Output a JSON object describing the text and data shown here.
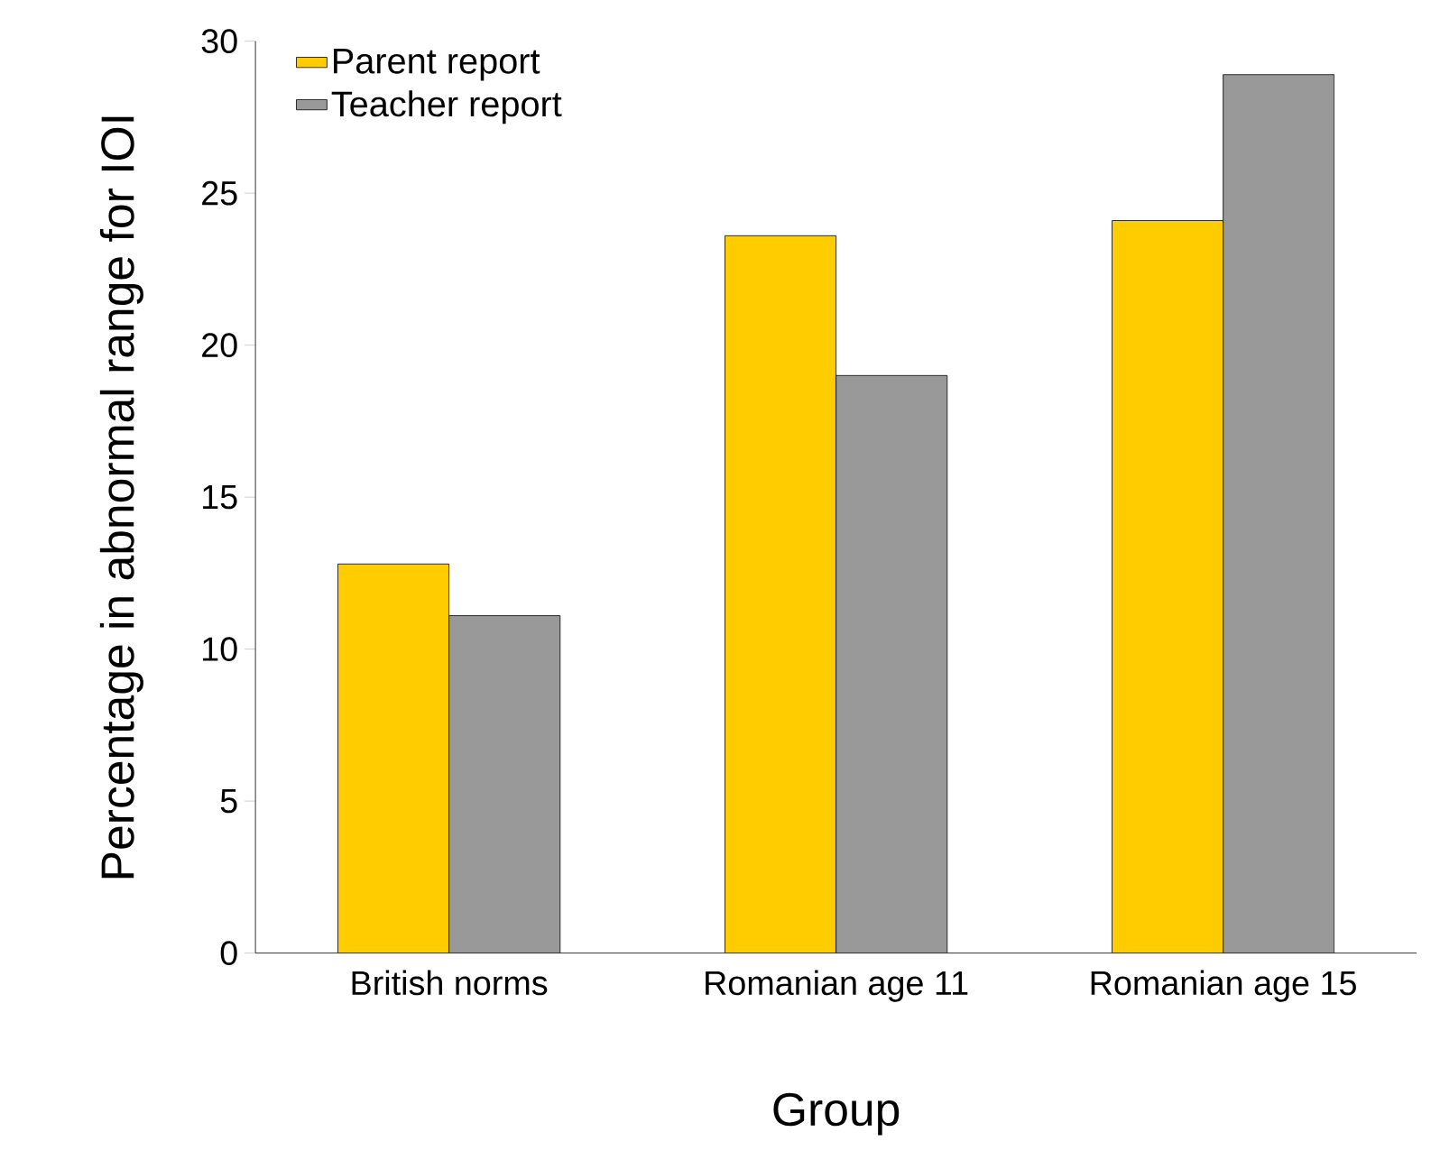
{
  "chart_data": {
    "type": "bar",
    "xlabel": "Group",
    "ylabel": "Percentage in abnormal range for IOI",
    "categories": [
      "British norms",
      "Romanian age 11",
      "Romanian age 15"
    ],
    "series": [
      {
        "name": "Parent report",
        "color": "#ffcc00",
        "values": [
          12.8,
          23.6,
          24.1
        ]
      },
      {
        "name": "Teacher report",
        "color": "#999999",
        "values": [
          11.1,
          19.0,
          28.9
        ]
      }
    ],
    "ylim": [
      0,
      30
    ],
    "yticks": [
      0,
      5,
      10,
      15,
      20,
      25,
      30
    ],
    "legend": "top left"
  }
}
